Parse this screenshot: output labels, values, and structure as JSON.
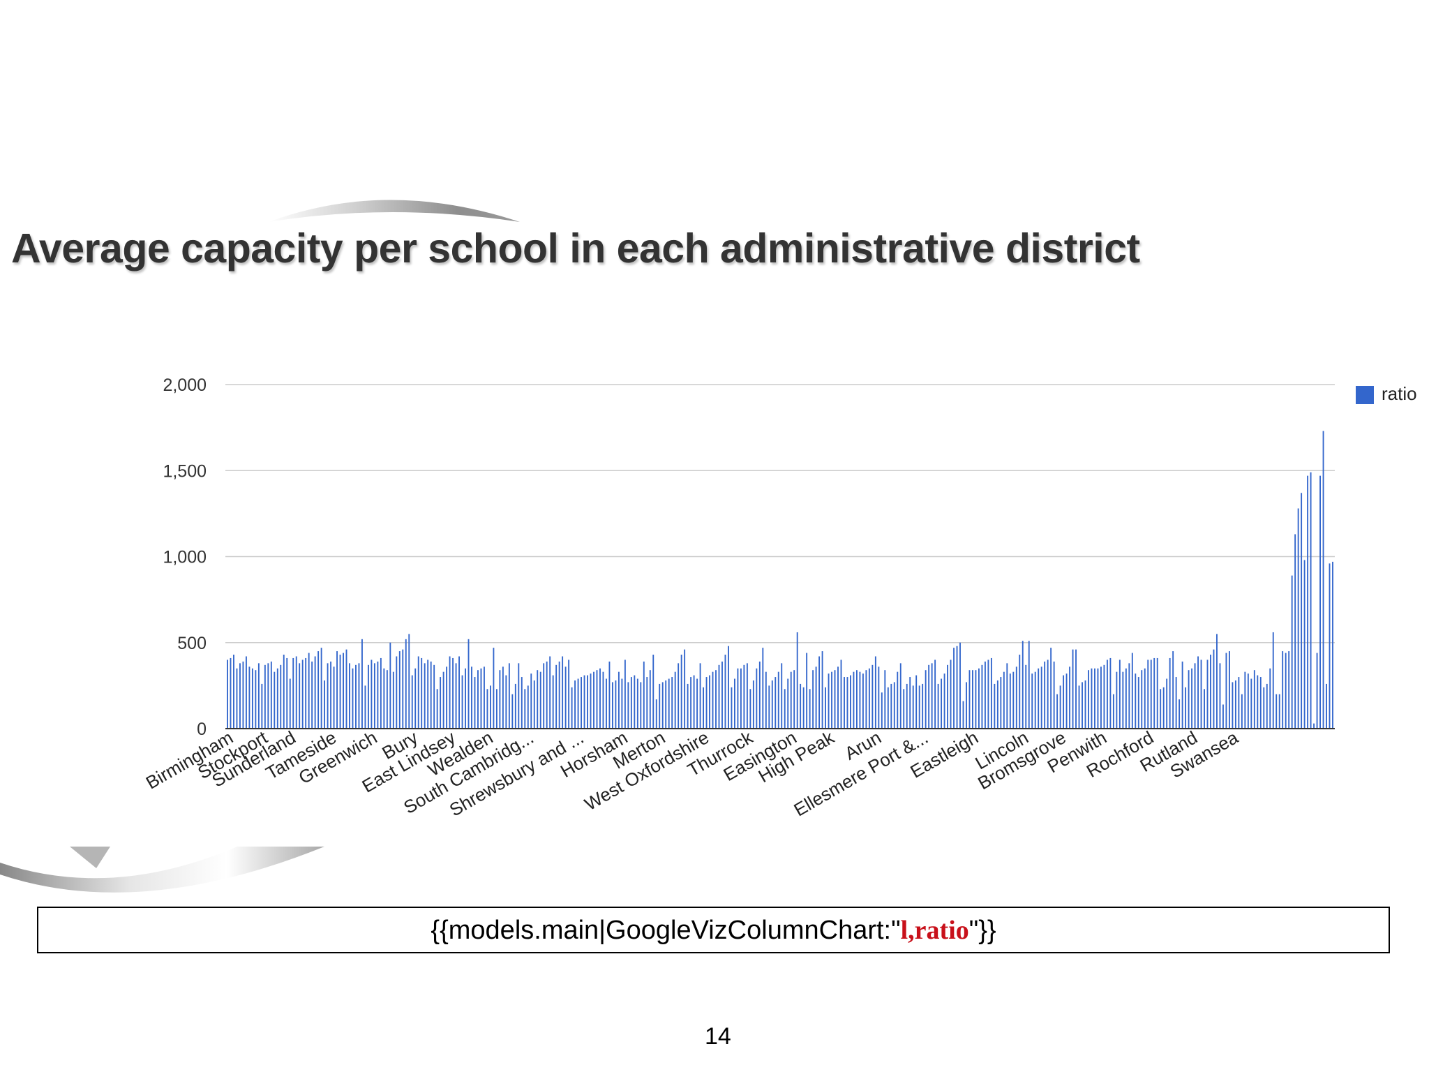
{
  "slide": {
    "title": "Average capacity per school in each administrative district",
    "formula": {
      "prefix": "{{models.main|GoogleVizColumnChart:\"",
      "argument": "l,ratio",
      "suffix": "\"}}"
    },
    "page_number": "14"
  },
  "chart_data": {
    "type": "bar",
    "title": "",
    "xlabel": "",
    "ylabel": "",
    "ylim": [
      0,
      2000
    ],
    "yticks": [
      0,
      500,
      1000,
      1500,
      2000
    ],
    "ytick_labels": [
      "0",
      "500",
      "1,000",
      "1,500",
      "2,000"
    ],
    "grid": true,
    "legend_position": "right",
    "bar_color": "#3366cc",
    "x_tick_labels": [
      "Birmingham",
      "Stockport",
      "Sunderland",
      "Tameside",
      "Greenwich",
      "Bury",
      "East Lindsey",
      "Wealden",
      "South Cambridg...",
      "Shrewsbury and ...",
      "Horsham",
      "Merton",
      "West Oxfordshire",
      "Thurrock",
      "Easington",
      "High Peak",
      "Arun",
      "Ellesmere Port &...",
      "Eastleigh",
      "Lincoln",
      "Bromsgrove",
      "Penwith",
      "Rochford",
      "Rutland",
      "Swansea"
    ],
    "x_tick_bar_index": [
      0,
      11,
      20,
      33,
      46,
      59,
      71,
      83,
      96,
      112,
      126,
      138,
      152,
      166,
      180,
      192,
      207,
      222,
      238,
      254,
      266,
      279,
      294,
      308,
      321
    ],
    "series": [
      {
        "name": "ratio",
        "values": [
          400,
          410,
          430,
          350,
          380,
          390,
          420,
          360,
          350,
          340,
          380,
          260,
          370,
          380,
          390,
          330,
          350,
          370,
          430,
          410,
          290,
          410,
          420,
          380,
          400,
          410,
          440,
          390,
          420,
          450,
          470,
          280,
          380,
          390,
          360,
          450,
          430,
          440,
          460,
          380,
          350,
          370,
          380,
          520,
          250,
          370,
          400,
          380,
          390,
          410,
          350,
          340,
          500,
          330,
          420,
          450,
          460,
          520,
          550,
          310,
          350,
          420,
          410,
          380,
          400,
          390,
          370,
          230,
          300,
          330,
          360,
          420,
          410,
          380,
          420,
          310,
          350,
          520,
          360,
          300,
          340,
          350,
          360,
          230,
          250,
          470,
          230,
          340,
          360,
          310,
          380,
          200,
          260,
          380,
          300,
          230,
          250,
          320,
          280,
          340,
          330,
          380,
          390,
          420,
          310,
          370,
          390,
          420,
          360,
          400,
          240,
          280,
          290,
          300,
          310,
          310,
          320,
          330,
          340,
          350,
          330,
          290,
          390,
          270,
          280,
          330,
          290,
          400,
          270,
          300,
          310,
          290,
          270,
          390,
          300,
          340,
          430,
          170,
          260,
          270,
          280,
          290,
          300,
          330,
          380,
          430,
          460,
          260,
          300,
          310,
          290,
          380,
          240,
          300,
          310,
          330,
          340,
          370,
          390,
          430,
          480,
          240,
          290,
          350,
          350,
          370,
          380,
          230,
          280,
          350,
          390,
          470,
          330,
          250,
          280,
          300,
          330,
          380,
          230,
          290,
          330,
          340,
          560,
          260,
          240,
          440,
          230,
          340,
          360,
          420,
          450,
          240,
          320,
          330,
          340,
          360,
          400,
          300,
          300,
          310,
          330,
          340,
          330,
          320,
          340,
          350,
          370,
          420,
          360,
          210,
          340,
          240,
          260,
          270,
          330,
          380,
          230,
          260,
          300,
          250,
          310,
          250,
          260,
          340,
          370,
          380,
          400,
          260,
          290,
          320,
          370,
          400,
          470,
          480,
          500,
          160,
          270,
          340,
          340,
          340,
          350,
          370,
          390,
          400,
          410,
          260,
          280,
          300,
          330,
          380,
          320,
          330,
          360,
          430,
          510,
          370,
          510,
          320,
          330,
          350,
          360,
          390,
          400,
          470,
          390,
          200,
          250,
          310,
          320,
          360,
          460,
          460,
          250,
          270,
          280,
          340,
          350,
          350,
          350,
          360,
          370,
          400,
          410,
          200,
          330,
          400,
          330,
          350,
          380,
          440,
          320,
          300,
          340,
          350,
          400,
          400,
          410,
          410,
          230,
          240,
          290,
          410,
          450,
          300,
          170,
          390,
          240,
          340,
          350,
          380,
          420,
          400,
          230,
          400,
          430,
          460,
          550,
          380,
          140,
          440,
          450,
          270,
          280,
          300,
          200,
          330,
          320,
          290,
          340,
          310,
          300,
          240,
          260,
          350,
          560,
          200,
          200,
          450,
          440,
          450,
          890,
          1130,
          1280,
          1370,
          980,
          1470,
          1490,
          30,
          440,
          1470,
          1730,
          260,
          960,
          970
        ]
      }
    ]
  }
}
